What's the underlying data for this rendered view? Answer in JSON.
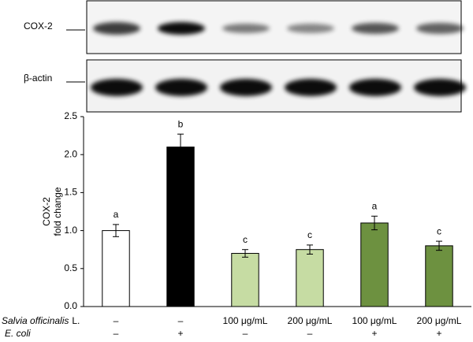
{
  "blot": {
    "labels": [
      "COX-2",
      "β-actin"
    ]
  },
  "chart_data": {
    "type": "bar",
    "y_label": [
      "COX-2",
      "fold change"
    ],
    "values": [
      1.0,
      2.1,
      0.7,
      0.75,
      1.1,
      0.8
    ],
    "errors": [
      0.08,
      0.17,
      0.05,
      0.06,
      0.09,
      0.06
    ],
    "annotations": [
      "a",
      "b",
      "c",
      "c",
      "a",
      "c"
    ],
    "colors": [
      "#ffffff",
      "#000000",
      "#c6dca3",
      "#c6dca3",
      "#6d9140",
      "#6d9140"
    ],
    "ylim": [
      0,
      2.5
    ],
    "yticks": [
      {
        "value": 0,
        "label": "0.0"
      },
      0.5,
      {
        "value": 1,
        "label": "1.0"
      },
      1.5,
      {
        "value": 2,
        "label": "2.0"
      },
      2.5
    ]
  },
  "treatments": [
    {
      "label": [
        "Salvia officinalis",
        "L."
      ],
      "cells": [
        "–",
        "–",
        "100 μg/mL",
        "200 μg/mL",
        "100 μg/mL",
        "200 μg/mL"
      ]
    },
    {
      "label": [
        "E. coli"
      ],
      "cells": [
        "–",
        "+",
        "–",
        "–",
        "+",
        "+"
      ]
    }
  ]
}
